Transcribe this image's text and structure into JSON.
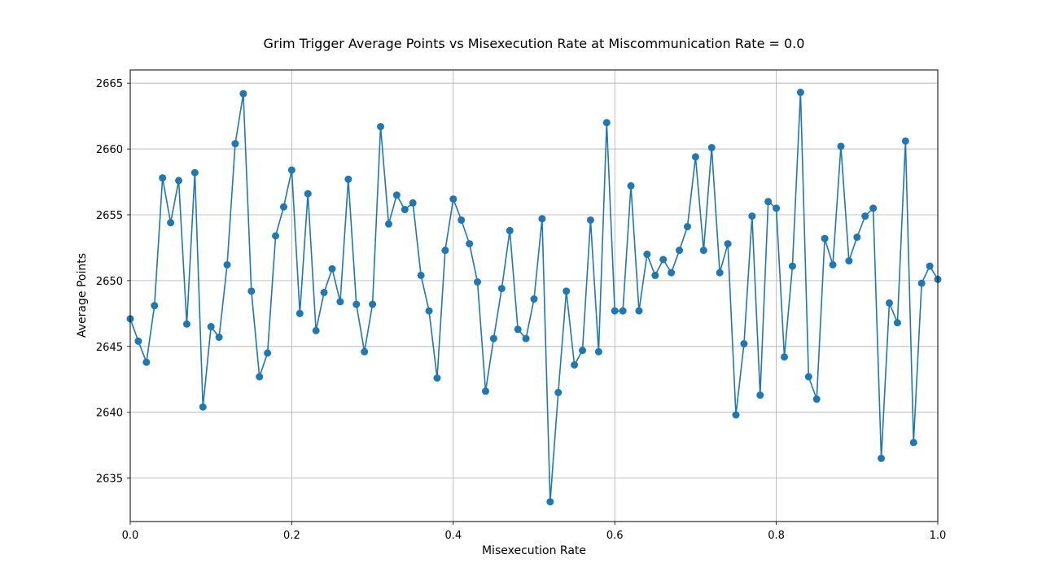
{
  "chart_data": {
    "type": "line",
    "title": "Grim Trigger Average Points vs Misexecution Rate at Miscommunication Rate = 0.0",
    "xlabel": "Misexecution Rate",
    "ylabel": "Average Points",
    "xlim": [
      0.0,
      1.0
    ],
    "ylim": [
      2631.7,
      2666.0
    ],
    "xticks": [
      0.0,
      0.2,
      0.4,
      0.6,
      0.8,
      1.0
    ],
    "xtick_labels": [
      "0.0",
      "0.2",
      "0.4",
      "0.6",
      "0.8",
      "1.0"
    ],
    "yticks": [
      2635,
      2640,
      2645,
      2650,
      2655,
      2660,
      2665
    ],
    "ytick_labels": [
      "2635",
      "2640",
      "2645",
      "2650",
      "2655",
      "2660",
      "2665"
    ],
    "grid": true,
    "marker": "circle",
    "color": "#1f77b4",
    "series": [
      {
        "x": [
          0.0,
          0.01,
          0.02,
          0.03,
          0.04,
          0.05,
          0.06,
          0.07,
          0.08,
          0.09,
          0.1,
          0.11,
          0.12,
          0.13,
          0.14,
          0.15,
          0.16,
          0.17,
          0.18,
          0.19,
          0.2,
          0.21,
          0.22,
          0.23,
          0.24,
          0.25,
          0.26,
          0.27,
          0.28,
          0.29,
          0.3,
          0.31,
          0.32,
          0.33,
          0.34,
          0.35,
          0.36,
          0.37,
          0.38,
          0.39,
          0.4,
          0.41,
          0.42,
          0.43,
          0.44,
          0.45,
          0.46,
          0.47,
          0.48,
          0.49,
          0.5,
          0.51,
          0.52,
          0.53,
          0.54,
          0.55,
          0.56,
          0.57,
          0.58,
          0.59,
          0.6,
          0.61,
          0.62,
          0.63,
          0.64,
          0.65,
          0.66,
          0.67,
          0.68,
          0.69,
          0.7,
          0.71,
          0.72,
          0.73,
          0.74,
          0.75,
          0.76,
          0.77,
          0.78,
          0.79,
          0.8,
          0.81,
          0.82,
          0.83,
          0.84,
          0.85,
          0.86,
          0.87,
          0.88,
          0.89,
          0.9,
          0.91,
          0.92,
          0.93,
          0.94,
          0.95,
          0.96,
          0.97,
          0.98,
          0.99,
          1.0
        ],
        "y": [
          2647.1,
          2645.4,
          2643.8,
          2648.1,
          2657.8,
          2654.4,
          2657.6,
          2646.7,
          2658.2,
          2640.4,
          2646.5,
          2645.7,
          2651.2,
          2660.4,
          2664.2,
          2649.2,
          2642.7,
          2644.5,
          2653.4,
          2655.6,
          2658.4,
          2647.5,
          2656.6,
          2646.2,
          2649.1,
          2650.9,
          2648.4,
          2657.7,
          2648.2,
          2644.6,
          2648.2,
          2661.7,
          2654.3,
          2656.5,
          2655.4,
          2655.9,
          2650.4,
          2647.7,
          2642.6,
          2652.3,
          2656.2,
          2654.6,
          2652.8,
          2649.9,
          2641.6,
          2645.6,
          2649.4,
          2653.8,
          2646.3,
          2645.6,
          2648.6,
          2654.7,
          2633.2,
          2641.5,
          2649.2,
          2643.6,
          2644.7,
          2654.6,
          2644.6,
          2662.0,
          2647.7,
          2647.7,
          2657.2,
          2647.7,
          2652.0,
          2650.4,
          2651.6,
          2650.6,
          2652.3,
          2654.1,
          2659.4,
          2652.3,
          2660.1,
          2650.6,
          2652.8,
          2639.8,
          2645.2,
          2654.9,
          2641.3,
          2656.0,
          2655.5,
          2644.2,
          2651.1,
          2664.3,
          2642.7,
          2641.0,
          2653.2,
          2651.2,
          2660.2,
          2651.5,
          2653.3,
          2654.9,
          2655.5,
          2636.5,
          2648.3,
          2646.8,
          2660.6,
          2637.7,
          2649.8,
          2651.1,
          2650.1
        ]
      }
    ]
  }
}
